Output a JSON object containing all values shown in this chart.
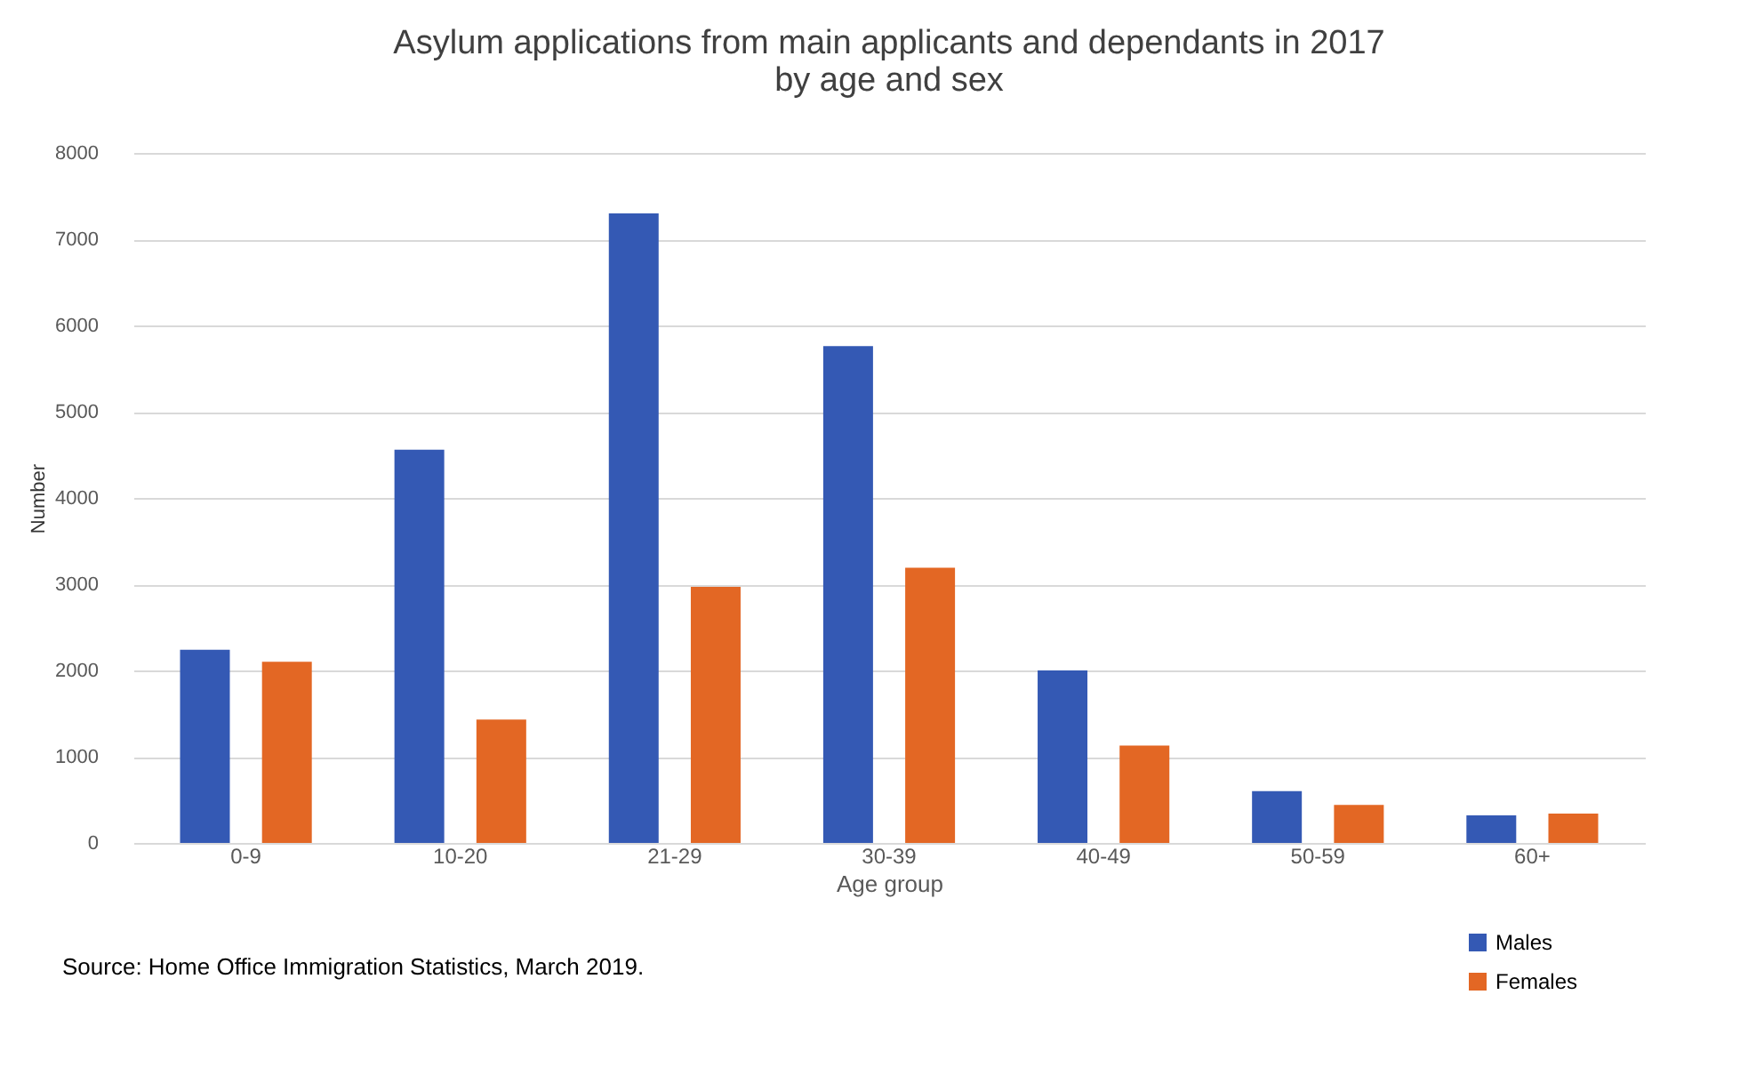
{
  "chart_data": {
    "type": "bar",
    "title": [
      "Asylum applications from main applicants and dependants in 2017",
      "by age and sex"
    ],
    "xlabel": "Age group",
    "ylabel": "Number",
    "categories": [
      "0-9",
      "10-20",
      "21-29",
      "30-39",
      "40-49",
      "50-59",
      "60+"
    ],
    "series": [
      {
        "name": "Males",
        "color": "#3459b4",
        "values": [
          2240,
          4560,
          7300,
          5760,
          2000,
          600,
          320
        ]
      },
      {
        "name": "Females",
        "color": "#e36724",
        "values": [
          2100,
          1430,
          2970,
          3190,
          1130,
          440,
          340
        ]
      }
    ],
    "ylim": [
      0,
      8000
    ],
    "yticks": [
      0,
      1000,
      2000,
      3000,
      4000,
      5000,
      6000,
      7000,
      8000
    ],
    "grid": "y",
    "legend": "bottom right",
    "annotations": [
      "Source: Home Office Immigration Statistics, March 2019."
    ]
  }
}
